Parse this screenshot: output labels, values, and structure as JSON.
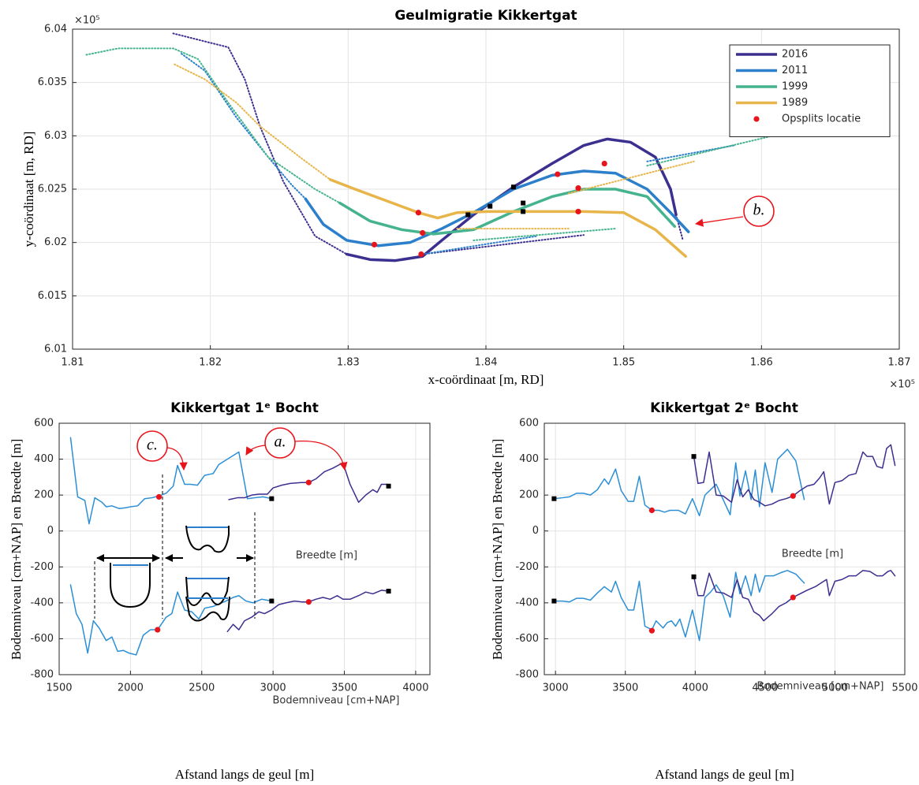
{
  "chart_data": [
    {
      "type": "line",
      "title": "Geulmigratie Kikkertgat",
      "xlabel": "x-coördinaat [m, RD]",
      "ylabel": "y-coördinaat [m, RD]",
      "x_multiplier": "×10⁵",
      "y_multiplier": "×10⁵",
      "xlim": [
        1.81,
        1.87
      ],
      "ylim": [
        6.01,
        6.04
      ],
      "xticks": [
        1.81,
        1.82,
        1.83,
        1.84,
        1.85,
        1.86,
        1.87
      ],
      "yticks": [
        6.01,
        6.015,
        6.02,
        6.025,
        6.03,
        6.035,
        6.04
      ],
      "grid": true,
      "legend": "upper right",
      "series": [
        {
          "name": "2016",
          "color": "#3b2f8f",
          "x": [
            1.8299,
            1.8316,
            1.8334,
            1.8354,
            1.8368,
            1.8391,
            1.842,
            1.8448,
            1.8471,
            1.8488,
            1.8505,
            1.8523,
            1.8534,
            1.8538
          ],
          "values": [
            6.0189,
            6.0184,
            6.0183,
            6.0187,
            6.0202,
            6.0226,
            6.0252,
            6.0274,
            6.0291,
            6.0297,
            6.0294,
            6.028,
            6.025,
            6.0226
          ],
          "dotted": [
            {
              "x": [
                1.8173,
                1.8213,
                1.8225,
                1.8236,
                1.8253,
                1.8276,
                1.8299
              ],
              "values": [
                6.0396,
                6.0383,
                6.0353,
                6.0309,
                6.0257,
                6.0206,
                6.0189
              ]
            },
            {
              "x": [
                1.8538,
                1.8543
              ],
              "values": [
                6.0226,
                6.0202
              ]
            },
            {
              "x": [
                1.8354,
                1.8471
              ],
              "values": [
                6.0189,
                6.0207
              ]
            }
          ]
        },
        {
          "name": "2011",
          "color": "#2b7fcb",
          "x": [
            1.8269,
            1.8282,
            1.8299,
            1.8322,
            1.8345,
            1.8368,
            1.8391,
            1.842,
            1.8448,
            1.8471,
            1.8494,
            1.8517,
            1.8534,
            1.8547
          ],
          "values": [
            6.0241,
            6.0217,
            6.0202,
            6.0197,
            6.02,
            6.0213,
            6.0228,
            6.025,
            6.0263,
            6.0267,
            6.0265,
            6.025,
            6.0228,
            6.021
          ],
          "dotted": [
            {
              "x": [
                1.8179,
                1.8196,
                1.8219,
                1.8242,
                1.8259,
                1.8269
              ],
              "values": [
                6.0377,
                6.0361,
                6.0317,
                6.028,
                6.0254,
                6.0241
              ]
            },
            {
              "x": [
                1.8354,
                1.8437
              ],
              "values": [
                6.0189,
                6.0206
              ]
            },
            {
              "x": [
                1.8517,
                1.858
              ],
              "values": [
                6.0276,
                6.0291
              ]
            }
          ]
        },
        {
          "name": "1999",
          "color": "#45b48e",
          "x": [
            1.8294,
            1.8316,
            1.8339,
            1.8362,
            1.8391,
            1.842,
            1.8448,
            1.8471,
            1.8494,
            1.8517,
            1.8537
          ],
          "values": [
            6.0237,
            6.022,
            6.0212,
            6.0208,
            6.0212,
            6.0229,
            6.0243,
            6.025,
            6.025,
            6.0243,
            6.0215
          ],
          "dotted": [
            {
              "x": [
                1.811,
                1.8133,
                1.8173,
                1.8191,
                1.8213,
                1.8242,
                1.8276,
                1.8294
              ],
              "values": [
                6.0376,
                6.0382,
                6.0382,
                6.0372,
                6.0331,
                6.028,
                6.025,
                6.0237
              ]
            },
            {
              "x": [
                1.8391,
                1.8494
              ],
              "values": [
                6.0202,
                6.0213
              ]
            },
            {
              "x": [
                1.8517,
                1.8608
              ],
              "values": [
                6.0272,
                6.03
              ]
            }
          ]
        },
        {
          "name": "1989",
          "color": "#e8b54a",
          "x": [
            1.8287,
            1.8305,
            1.8328,
            1.8351,
            1.8365,
            1.8379,
            1.8402,
            1.8437,
            1.8471,
            1.85,
            1.8523,
            1.8545
          ],
          "values": [
            6.0259,
            6.025,
            6.0239,
            6.0228,
            6.0223,
            6.0228,
            6.0229,
            6.0229,
            6.0229,
            6.0228,
            6.0212,
            6.0187
          ],
          "dotted": [
            {
              "x": [
                1.8174,
                1.8196,
                1.8219,
                1.8236,
                1.8265,
                1.8287
              ],
              "values": [
                6.0367,
                6.0353,
                6.0331,
                6.0309,
                6.028,
                6.0259
              ]
            },
            {
              "x": [
                1.8379,
                1.846
              ],
              "values": [
                6.0213,
                6.0213
              ]
            },
            {
              "x": [
                1.846,
                1.8551
              ],
              "values": [
                6.0246,
                6.0276
              ]
            }
          ]
        }
      ],
      "points": {
        "name": "Opsplits locatie",
        "color": "#e8141b",
        "x": [
          1.8351,
          1.8354,
          1.8319,
          1.8353,
          1.8452,
          1.8467,
          1.8467,
          1.8486
        ],
        "values": [
          6.0228,
          6.0209,
          6.0198,
          6.0189,
          6.0264,
          6.0251,
          6.0229,
          6.0274
        ]
      },
      "markers": {
        "color": "#000000",
        "x": [
          1.8387,
          1.8403,
          1.842,
          1.8427,
          1.8427
        ],
        "values": [
          6.0226,
          6.0234,
          6.0252,
          6.0237,
          6.0229
        ]
      },
      "annotations": [
        "b."
      ]
    },
    {
      "type": "line",
      "title": "Kikkertgat 1ᵉ Bocht",
      "xlabel": "Afstand langs de geul [m]",
      "ylabel": "Bodemniveau [cm+NAP] en Breedte [m]",
      "xlim": [
        1500,
        4100
      ],
      "ylim": [
        -800,
        600
      ],
      "xticks": [
        1500,
        2000,
        2500,
        3000,
        3500,
        4000
      ],
      "yticks": [
        -800,
        -600,
        -400,
        -200,
        0,
        200,
        400,
        600
      ],
      "grid": true,
      "series": [
        {
          "color": "#2b8fd6",
          "x": [
            1580,
            1630,
            1680,
            1710,
            1750,
            1800,
            1830,
            1870,
            1920,
            1970,
            2000,
            2050,
            2100,
            2150,
            2200,
            2250,
            2300,
            2330,
            2380,
            2420,
            2470,
            2520,
            2580,
            2620,
            2700,
            2760,
            2820,
            2870,
            2930,
            2990
          ],
          "values": [
            520,
            190,
            170,
            40,
            185,
            160,
            135,
            140,
            125,
            130,
            135,
            140,
            180,
            185,
            195,
            210,
            250,
            365,
            260,
            260,
            255,
            310,
            320,
            370,
            410,
            440,
            180,
            185,
            190,
            180
          ]
        },
        {
          "color": "#3b2f8f",
          "x": [
            2690,
            2750,
            2800,
            2850,
            2900,
            2960,
            3000,
            3060,
            3120,
            3200,
            3250,
            3300,
            3360,
            3420,
            3490,
            3540,
            3600,
            3650,
            3700,
            3730,
            3760,
            3800,
            3810
          ],
          "values": [
            175,
            185,
            185,
            200,
            205,
            205,
            240,
            255,
            265,
            270,
            270,
            290,
            330,
            350,
            380,
            260,
            160,
            200,
            230,
            215,
            260,
            260,
            250
          ]
        },
        {
          "color": "#2b8fd6",
          "x": [
            1580,
            1620,
            1660,
            1700,
            1740,
            1780,
            1830,
            1870,
            1910,
            1950,
            1990,
            2040,
            2090,
            2140,
            2190,
            2250,
            2290,
            2330,
            2380,
            2430,
            2480,
            2520,
            2580,
            2640,
            2670,
            2720,
            2760,
            2810,
            2860,
            2920,
            2990
          ],
          "values": [
            -300,
            -460,
            -520,
            -680,
            -500,
            -540,
            -610,
            -590,
            -670,
            -665,
            -680,
            -690,
            -580,
            -550,
            -550,
            -480,
            -460,
            -340,
            -440,
            -450,
            -490,
            -430,
            -420,
            -400,
            -390,
            -370,
            -360,
            -390,
            -400,
            -380,
            -390
          ]
        },
        {
          "color": "#3b2f8f",
          "x": [
            2680,
            2720,
            2760,
            2800,
            2850,
            2900,
            2940,
            2990,
            3040,
            3090,
            3150,
            3200,
            3250,
            3300,
            3350,
            3400,
            3450,
            3490,
            3540,
            3600,
            3650,
            3700,
            3760,
            3810
          ],
          "values": [
            -560,
            -520,
            -550,
            -500,
            -480,
            -450,
            -460,
            -440,
            -410,
            -400,
            -390,
            -395,
            -395,
            -380,
            -370,
            -380,
            -360,
            -380,
            -380,
            -360,
            -340,
            -350,
            -330,
            -335
          ]
        }
      ],
      "points": {
        "color": "#e8141b",
        "x": [
          2200,
          3250,
          2190,
          3250
        ],
        "values": [
          190,
          270,
          -550,
          -395
        ]
      },
      "markers": {
        "color": "#000000",
        "x": [
          2990,
          3810,
          2990,
          3810
        ],
        "values": [
          180,
          250,
          -390,
          -335
        ]
      },
      "annotations": [
        "c.",
        "a.",
        "Breedte [m]",
        "Bodemniveau [cm+NAP]"
      ]
    },
    {
      "type": "line",
      "title": "Kikkertgat 2ᵉ Bocht",
      "xlabel": "Afstand langs de geul [m]",
      "ylabel": "Bodemniveau [cm+NAP] en Breedte [m]",
      "xlim": [
        2920,
        5500
      ],
      "ylim": [
        -800,
        600
      ],
      "xticks": [
        3000,
        3500,
        4000,
        4500,
        5000,
        5500
      ],
      "yticks": [
        -800,
        -600,
        -400,
        -200,
        0,
        200,
        400,
        600
      ],
      "grid": true,
      "series": [
        {
          "color": "#2b8fd6",
          "x": [
            2990,
            3050,
            3100,
            3150,
            3200,
            3250,
            3300,
            3350,
            3380,
            3430,
            3470,
            3520,
            3560,
            3600,
            3640,
            3690,
            3740,
            3780,
            3820,
            3880,
            3930,
            3980,
            4030,
            4070,
            4110,
            4150,
            4200,
            4250,
            4290,
            4320,
            4360,
            4400,
            4430,
            4460,
            4500,
            4550,
            4590,
            4660,
            4720,
            4780
          ],
          "values": [
            180,
            185,
            190,
            210,
            210,
            200,
            230,
            290,
            260,
            345,
            225,
            165,
            165,
            305,
            145,
            115,
            115,
            105,
            115,
            115,
            95,
            180,
            85,
            200,
            230,
            260,
            175,
            90,
            380,
            195,
            335,
            175,
            340,
            135,
            380,
            215,
            400,
            455,
            390,
            175
          ]
        },
        {
          "color": "#3b2f8f",
          "x": [
            3990,
            4020,
            4060,
            4100,
            4150,
            4200,
            4260,
            4300,
            4340,
            4380,
            4420,
            4460,
            4500,
            4550,
            4600,
            4650,
            4700,
            4750,
            4800,
            4850,
            4890,
            4920,
            4960,
            5000,
            5050,
            5100,
            5150,
            5200,
            5230,
            5270,
            5300,
            5340,
            5370,
            5400,
            5430
          ],
          "values": [
            415,
            265,
            270,
            440,
            200,
            195,
            160,
            285,
            190,
            230,
            175,
            160,
            140,
            150,
            170,
            180,
            195,
            225,
            250,
            260,
            295,
            330,
            150,
            270,
            280,
            310,
            320,
            440,
            415,
            415,
            360,
            350,
            460,
            480,
            365
          ]
        },
        {
          "color": "#2b8fd6",
          "x": [
            2990,
            3050,
            3100,
            3150,
            3200,
            3250,
            3300,
            3350,
            3400,
            3430,
            3470,
            3520,
            3560,
            3600,
            3640,
            3690,
            3720,
            3770,
            3800,
            3830,
            3860,
            3890,
            3930,
            3980,
            4030,
            4070,
            4110,
            4150,
            4200,
            4250,
            4290,
            4320,
            4360,
            4400,
            4430,
            4460,
            4500,
            4560,
            4620,
            4660,
            4720,
            4780
          ],
          "values": [
            -390,
            -390,
            -395,
            -375,
            -375,
            -385,
            -345,
            -310,
            -340,
            -280,
            -370,
            -440,
            -440,
            -280,
            -530,
            -550,
            -500,
            -540,
            -510,
            -500,
            -530,
            -490,
            -590,
            -440,
            -610,
            -370,
            -340,
            -300,
            -360,
            -480,
            -230,
            -350,
            -250,
            -360,
            -240,
            -340,
            -250,
            -250,
            -230,
            -220,
            -240,
            -290
          ]
        },
        {
          "color": "#3b2f8f",
          "x": [
            3990,
            4020,
            4060,
            4100,
            4150,
            4200,
            4260,
            4300,
            4340,
            4380,
            4420,
            4460,
            4490,
            4550,
            4600,
            4650,
            4700,
            4750,
            4800,
            4860,
            4900,
            4940,
            4960,
            5000,
            5050,
            5100,
            5150,
            5200,
            5250,
            5300,
            5340,
            5380,
            5400,
            5430
          ],
          "values": [
            -255,
            -360,
            -360,
            -235,
            -340,
            -345,
            -370,
            -270,
            -370,
            -380,
            -450,
            -470,
            -500,
            -460,
            -420,
            -400,
            -370,
            -350,
            -330,
            -310,
            -290,
            -270,
            -360,
            -280,
            -270,
            -250,
            -250,
            -220,
            -225,
            -250,
            -250,
            -225,
            -220,
            -250
          ]
        }
      ],
      "points": {
        "color": "#e8141b",
        "x": [
          3690,
          4700,
          3690,
          4700
        ],
        "values": [
          115,
          195,
          -555,
          -370
        ]
      },
      "markers": {
        "color": "#000000",
        "x": [
          2990,
          3990,
          2990,
          3990
        ],
        "values": [
          180,
          415,
          -390,
          -255
        ]
      },
      "annotations": [
        "Breedte [m]",
        "Bodemniveau [cm+NAP]"
      ]
    }
  ]
}
